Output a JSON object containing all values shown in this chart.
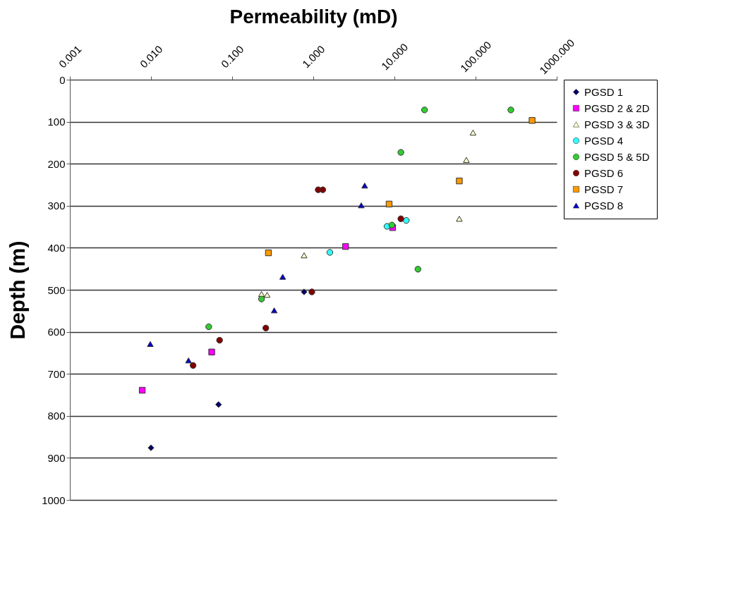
{
  "chart_data": {
    "type": "scatter",
    "xlabel": "Permeability (mD)",
    "ylabel": "Depth (m)",
    "log": "x",
    "xlim": [
      0.001,
      1000
    ],
    "xticks": [
      {
        "value": 0.001,
        "label": "0.001"
      },
      {
        "value": 0.01,
        "label": "0.010"
      },
      {
        "value": 0.1,
        "label": "0.100"
      },
      {
        "value": 1,
        "label": "1.000"
      },
      {
        "value": 10,
        "label": "10.000"
      },
      {
        "value": 100,
        "label": "100.000"
      },
      {
        "value": 1000,
        "label": "1000.000"
      }
    ],
    "ylim": [
      1000,
      0
    ],
    "yticks": [
      0,
      100,
      200,
      300,
      400,
      500,
      600,
      700,
      800,
      900,
      1000
    ],
    "grid": "y",
    "legend": "right",
    "series": [
      {
        "name": "PGSD 1",
        "color": "#000066",
        "marker": "diamond",
        "x": [
          0.77,
          0.068,
          0.01
        ],
        "values": [
          505,
          773,
          876
        ]
      },
      {
        "name": "PGSD 2 & 2D",
        "color": "#ff00ff",
        "marker": "square",
        "x": [
          9.5,
          2.5,
          0.056,
          0.0078
        ],
        "values": [
          352,
          397,
          648,
          739
        ]
      },
      {
        "name": "PGSD 3 & 3D",
        "color": "#ffffcc",
        "marker": "triangle",
        "x": [
          93,
          77,
          63,
          0.77,
          0.23,
          0.27
        ],
        "values": [
          126,
          191,
          331,
          418,
          510,
          512
        ]
      },
      {
        "name": "PGSD 4",
        "color": "#33ffff",
        "marker": "circle",
        "x": [
          14,
          8.1,
          1.6
        ],
        "values": [
          335,
          349,
          411
        ]
      },
      {
        "name": "PGSD 5 & 5D",
        "color": "#33cc33",
        "marker": "circle",
        "x": [
          23.5,
          272,
          12,
          9.3,
          19.5,
          0.23,
          0.0515
        ],
        "values": [
          72,
          72,
          173,
          346,
          451,
          522,
          588
        ]
      },
      {
        "name": "PGSD 6",
        "color": "#800000",
        "marker": "circle",
        "x": [
          1.15,
          1.31,
          12,
          0.96,
          0.26,
          0.07,
          0.033
        ],
        "values": [
          262,
          262,
          331,
          505,
          591,
          620,
          680
        ]
      },
      {
        "name": "PGSD 7",
        "color": "#ff9900",
        "marker": "square",
        "x": [
          497,
          63,
          8.6,
          0.28
        ],
        "values": [
          97,
          241,
          296,
          412
        ]
      },
      {
        "name": "PGSD 8",
        "color": "#0000cc",
        "marker": "triangle",
        "x": [
          4.3,
          3.9,
          0.42,
          0.33,
          0.0098,
          0.029
        ],
        "values": [
          252,
          299,
          469,
          549,
          629,
          668
        ]
      }
    ]
  }
}
